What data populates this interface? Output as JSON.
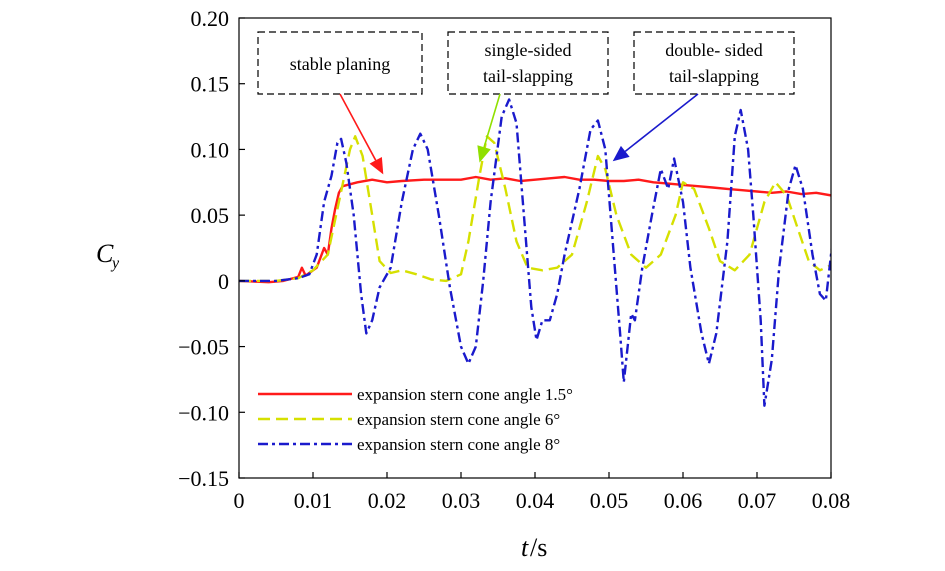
{
  "chart_data": {
    "type": "line",
    "xlabel_symbol": "t",
    "xlabel_unit": "/s",
    "ylabel_symbol": "C",
    "ylabel_subscript": "y",
    "xlim": [
      0,
      0.08
    ],
    "ylim": [
      -0.15,
      0.2
    ],
    "x_ticks": [
      0,
      0.01,
      0.02,
      0.03,
      0.04,
      0.05,
      0.06,
      0.07,
      0.08
    ],
    "x_tick_labels": [
      "0",
      "0.01",
      "0.02",
      "0.03",
      "0.04",
      "0.05",
      "0.06",
      "0.07",
      "0.08"
    ],
    "y_ticks": [
      -0.15,
      -0.1,
      -0.05,
      0,
      0.05,
      0.1,
      0.15,
      0.2
    ],
    "y_tick_labels": [
      "−0.15",
      "−0.10",
      "−0.05",
      "0",
      "0.05",
      "0.10",
      "0.15",
      "0.20"
    ],
    "grid": false,
    "legend_position": "bottom-left",
    "series": [
      {
        "name": "expansion stern cone angle 1.5°",
        "color": "#ff1a1a",
        "style": "solid",
        "points": [
          [
            0,
            0
          ],
          [
            0.004,
            -0.001
          ],
          [
            0.006,
            0.0
          ],
          [
            0.008,
            0.003
          ],
          [
            0.0085,
            0.01
          ],
          [
            0.009,
            0.004
          ],
          [
            0.0105,
            0.01
          ],
          [
            0.0115,
            0.025
          ],
          [
            0.012,
            0.02
          ],
          [
            0.0125,
            0.04
          ],
          [
            0.013,
            0.055
          ],
          [
            0.0135,
            0.067
          ],
          [
            0.014,
            0.072
          ],
          [
            0.016,
            0.075
          ],
          [
            0.018,
            0.077
          ],
          [
            0.02,
            0.075
          ],
          [
            0.022,
            0.076
          ],
          [
            0.025,
            0.077
          ],
          [
            0.028,
            0.077
          ],
          [
            0.03,
            0.077
          ],
          [
            0.032,
            0.079
          ],
          [
            0.034,
            0.077
          ],
          [
            0.036,
            0.078
          ],
          [
            0.038,
            0.076
          ],
          [
            0.04,
            0.077
          ],
          [
            0.042,
            0.078
          ],
          [
            0.044,
            0.079
          ],
          [
            0.046,
            0.077
          ],
          [
            0.048,
            0.077
          ],
          [
            0.05,
            0.076
          ],
          [
            0.052,
            0.076
          ],
          [
            0.054,
            0.077
          ],
          [
            0.056,
            0.075
          ],
          [
            0.058,
            0.074
          ],
          [
            0.06,
            0.073
          ],
          [
            0.062,
            0.072
          ],
          [
            0.064,
            0.071
          ],
          [
            0.066,
            0.07
          ],
          [
            0.068,
            0.069
          ],
          [
            0.07,
            0.068
          ],
          [
            0.072,
            0.067
          ],
          [
            0.074,
            0.068
          ],
          [
            0.076,
            0.066
          ],
          [
            0.078,
            0.067
          ],
          [
            0.08,
            0.065
          ]
        ]
      },
      {
        "name": "expansion stern cone angle 6°",
        "color": "#d6e000",
        "style": "dashed",
        "points": [
          [
            0,
            0
          ],
          [
            0.005,
            0.0
          ],
          [
            0.008,
            0.002
          ],
          [
            0.01,
            0.008
          ],
          [
            0.012,
            0.02
          ],
          [
            0.0135,
            0.06
          ],
          [
            0.015,
            0.1
          ],
          [
            0.0157,
            0.11
          ],
          [
            0.0167,
            0.095
          ],
          [
            0.018,
            0.05
          ],
          [
            0.019,
            0.015
          ],
          [
            0.0205,
            0.006
          ],
          [
            0.022,
            0.008
          ],
          [
            0.024,
            0.005
          ],
          [
            0.026,
            0.001
          ],
          [
            0.028,
            0.0
          ],
          [
            0.03,
            0.005
          ],
          [
            0.031,
            0.03
          ],
          [
            0.0325,
            0.08
          ],
          [
            0.0335,
            0.11
          ],
          [
            0.0345,
            0.105
          ],
          [
            0.036,
            0.07
          ],
          [
            0.0375,
            0.03
          ],
          [
            0.039,
            0.01
          ],
          [
            0.041,
            0.008
          ],
          [
            0.043,
            0.01
          ],
          [
            0.045,
            0.02
          ],
          [
            0.047,
            0.06
          ],
          [
            0.0485,
            0.095
          ],
          [
            0.0495,
            0.085
          ],
          [
            0.051,
            0.05
          ],
          [
            0.053,
            0.02
          ],
          [
            0.055,
            0.01
          ],
          [
            0.057,
            0.02
          ],
          [
            0.059,
            0.05
          ],
          [
            0.06,
            0.075
          ],
          [
            0.0615,
            0.07
          ],
          [
            0.0635,
            0.04
          ],
          [
            0.065,
            0.015
          ],
          [
            0.067,
            0.008
          ],
          [
            0.069,
            0.02
          ],
          [
            0.071,
            0.06
          ],
          [
            0.0725,
            0.075
          ],
          [
            0.074,
            0.065
          ],
          [
            0.0755,
            0.04
          ],
          [
            0.077,
            0.015
          ],
          [
            0.0785,
            0.008
          ],
          [
            0.08,
            0.012
          ]
        ]
      },
      {
        "name": "expansion stern cone angle 8°",
        "color": "#1a1acc",
        "style": "dashdot",
        "points": [
          [
            0,
            0
          ],
          [
            0.005,
            0.0
          ],
          [
            0.008,
            0.002
          ],
          [
            0.0095,
            0.005
          ],
          [
            0.0105,
            0.02
          ],
          [
            0.0115,
            0.06
          ],
          [
            0.0125,
            0.08
          ],
          [
            0.0133,
            0.105
          ],
          [
            0.0138,
            0.108
          ],
          [
            0.0145,
            0.09
          ],
          [
            0.0155,
            0.05
          ],
          [
            0.0165,
            -0.01
          ],
          [
            0.0172,
            -0.04
          ],
          [
            0.018,
            -0.03
          ],
          [
            0.019,
            -0.005
          ],
          [
            0.0205,
            0.01
          ],
          [
            0.022,
            0.06
          ],
          [
            0.0235,
            0.1
          ],
          [
            0.0245,
            0.112
          ],
          [
            0.0255,
            0.1
          ],
          [
            0.027,
            0.05
          ],
          [
            0.0285,
            -0.005
          ],
          [
            0.03,
            -0.05
          ],
          [
            0.031,
            -0.063
          ],
          [
            0.032,
            -0.05
          ],
          [
            0.033,
            0.0
          ],
          [
            0.034,
            0.06
          ],
          [
            0.0355,
            0.125
          ],
          [
            0.0365,
            0.138
          ],
          [
            0.0375,
            0.12
          ],
          [
            0.0385,
            0.05
          ],
          [
            0.0395,
            -0.02
          ],
          [
            0.0402,
            -0.045
          ],
          [
            0.041,
            -0.03
          ],
          [
            0.042,
            -0.03
          ],
          [
            0.043,
            -0.01
          ],
          [
            0.044,
            0.02
          ],
          [
            0.046,
            0.07
          ],
          [
            0.0475,
            0.115
          ],
          [
            0.0485,
            0.122
          ],
          [
            0.0495,
            0.1
          ],
          [
            0.0505,
            0.03
          ],
          [
            0.0515,
            -0.04
          ],
          [
            0.052,
            -0.077
          ],
          [
            0.053,
            -0.025
          ],
          [
            0.0535,
            -0.03
          ],
          [
            0.0545,
            0.01
          ],
          [
            0.0558,
            0.05
          ],
          [
            0.057,
            0.085
          ],
          [
            0.058,
            0.07
          ],
          [
            0.0588,
            0.093
          ],
          [
            0.06,
            0.06
          ],
          [
            0.061,
            0.01
          ],
          [
            0.0625,
            -0.04
          ],
          [
            0.0635,
            -0.063
          ],
          [
            0.0645,
            -0.04
          ],
          [
            0.066,
            0.03
          ],
          [
            0.067,
            0.11
          ],
          [
            0.0678,
            0.13
          ],
          [
            0.0688,
            0.1
          ],
          [
            0.0695,
            0.05
          ],
          [
            0.0705,
            -0.03
          ],
          [
            0.071,
            -0.095
          ],
          [
            0.072,
            -0.06
          ],
          [
            0.073,
            0.01
          ],
          [
            0.0743,
            0.07
          ],
          [
            0.0752,
            0.088
          ],
          [
            0.0762,
            0.07
          ],
          [
            0.0775,
            0.02
          ],
          [
            0.0785,
            -0.01
          ],
          [
            0.0793,
            -0.015
          ],
          [
            0.0802,
            0.03
          ]
        ]
      }
    ],
    "annotations": [
      {
        "lines": [
          "stable planing"
        ],
        "target": [
          0.0195,
          0.081
        ],
        "color": "#ff1a1a"
      },
      {
        "lines": [
          "single-sided",
          "tail-slapping"
        ],
        "target": [
          0.0325,
          0.09
        ],
        "color": "#90e000"
      },
      {
        "lines": [
          "double- sided",
          "tail-slapping"
        ],
        "target": [
          0.0505,
          0.091
        ],
        "color": "#1a1acc"
      }
    ]
  }
}
